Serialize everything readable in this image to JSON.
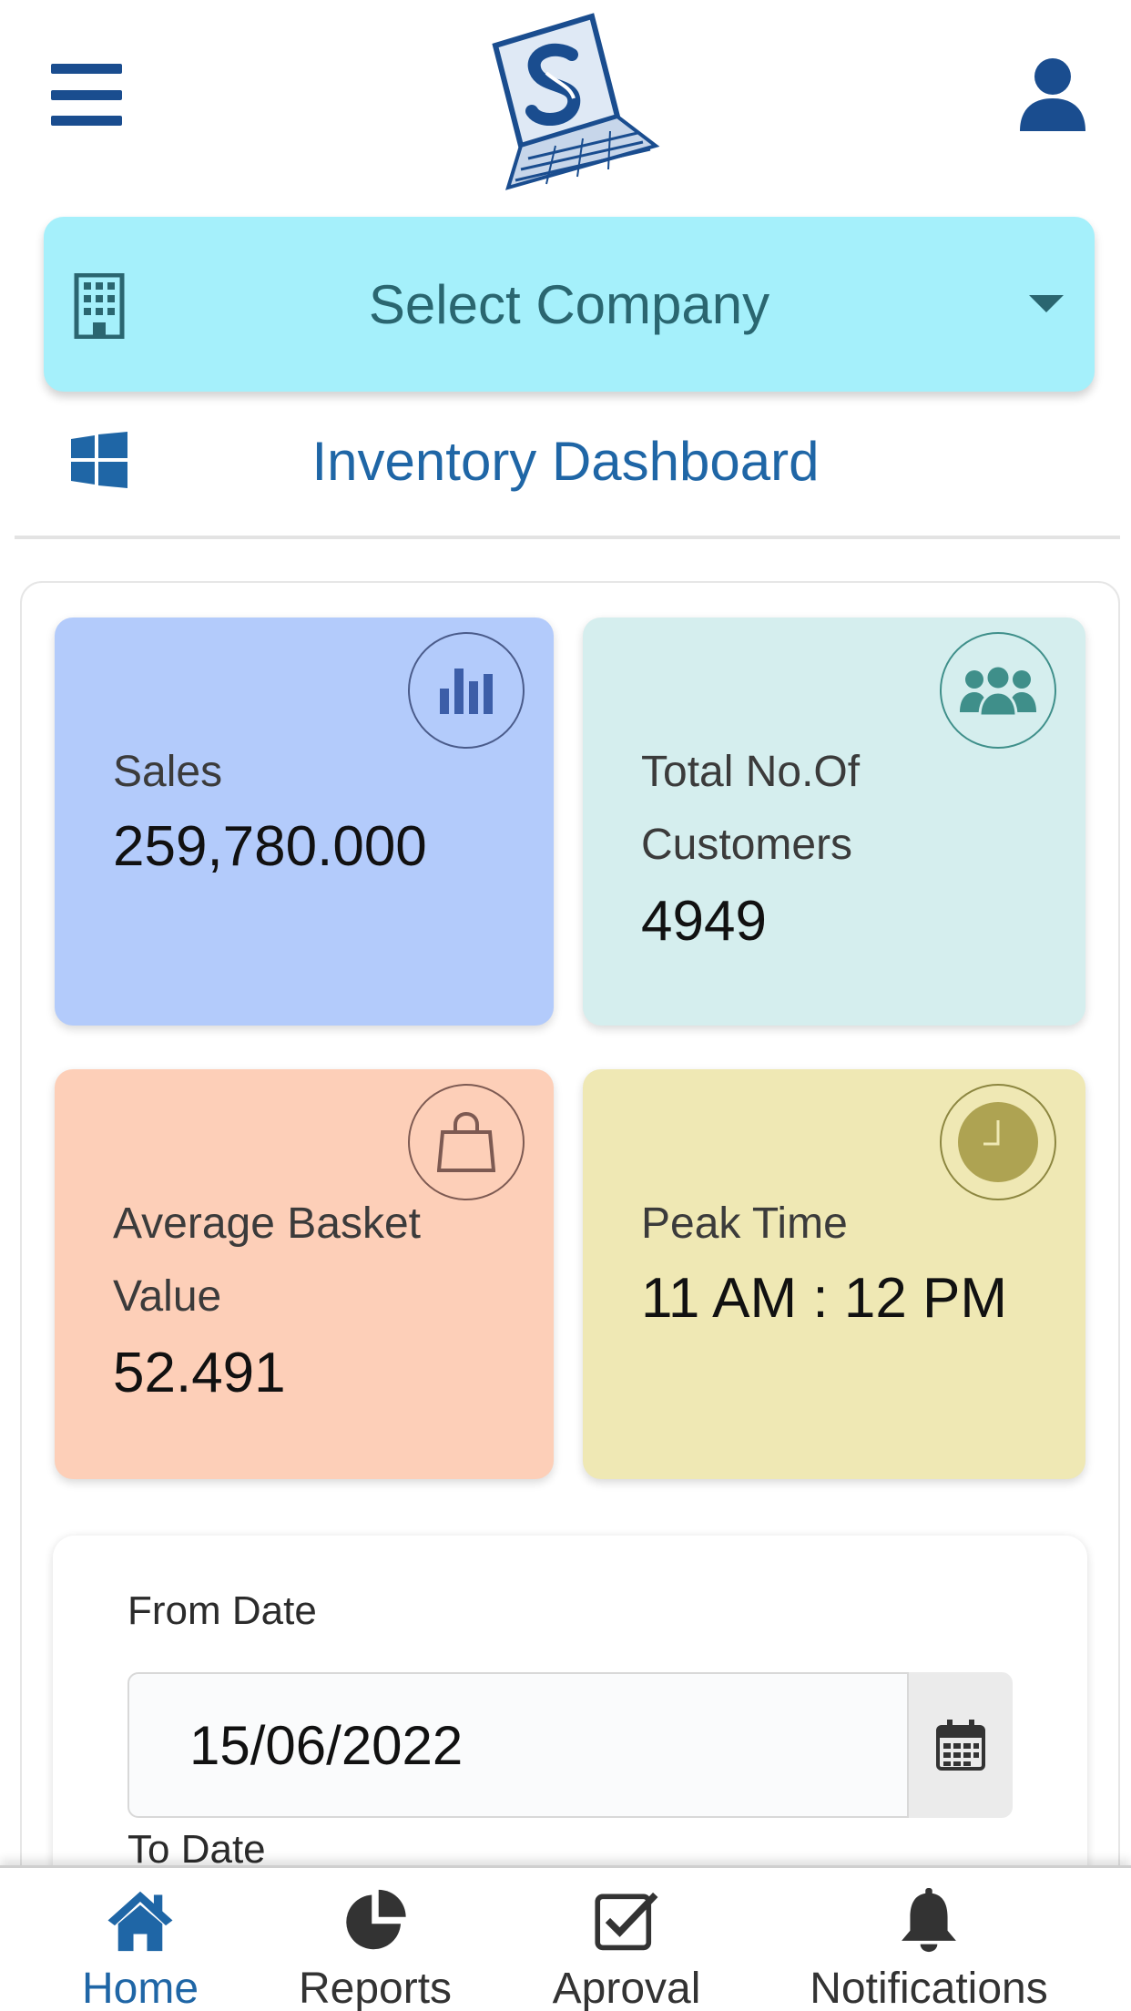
{
  "header": {
    "menu_icon": "hamburger-icon",
    "logo_icon": "company-logo",
    "user_icon": "user-icon"
  },
  "company_select": {
    "label": "Select Company",
    "icon": "building-icon",
    "caret_icon": "caret-down-icon",
    "background": "#a5f0fb"
  },
  "dashboard": {
    "title": "Inventory Dashboard",
    "icon": "windows-icon"
  },
  "cards": {
    "sales": {
      "label": "Sales",
      "value": "259,780.000",
      "icon": "bar-chart-icon",
      "color": "#b3cbfb"
    },
    "customers": {
      "label": "Total No.Of Customers",
      "value": "4949",
      "icon": "users-icon",
      "color": "#d5eeee"
    },
    "basket": {
      "label": "Average Basket Value",
      "value": "52.491",
      "icon": "shopping-bag-icon",
      "color": "#fdcfb8"
    },
    "peak": {
      "label": "Peak Time",
      "value": "11 AM : 12 PM",
      "icon": "clock-icon",
      "color": "#efe8b4"
    }
  },
  "filters": {
    "from_label": "From Date",
    "from_value": "15/06/2022",
    "to_label": "To Date",
    "calendar_icon": "calendar-icon"
  },
  "bottom_nav": {
    "items": [
      {
        "label": "Home",
        "icon": "home-icon",
        "active": true
      },
      {
        "label": "Reports",
        "icon": "pie-chart-icon",
        "active": false
      },
      {
        "label": "Aproval",
        "icon": "check-square-icon",
        "active": false
      },
      {
        "label": "Notifications",
        "icon": "bell-icon",
        "active": false
      }
    ],
    "active_color": "#1f66a6"
  }
}
